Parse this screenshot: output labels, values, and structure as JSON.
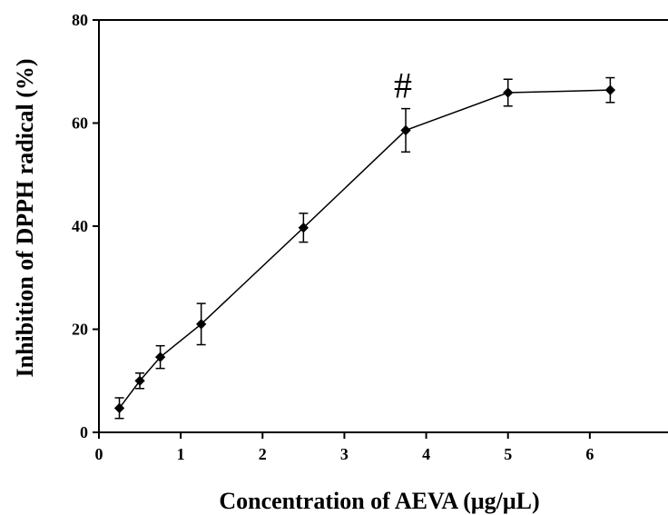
{
  "chart_data": {
    "type": "line",
    "title": "",
    "xlabel": "Concentration of AEVA (μg/μL)",
    "ylabel": "Inhibition of DPPH radical (%)",
    "xlim": [
      0,
      7
    ],
    "ylim": [
      0,
      80
    ],
    "xticks": [
      "0",
      "1",
      "2",
      "3",
      "4",
      "5",
      "6"
    ],
    "yticks": [
      "0",
      "20",
      "40",
      "60",
      "80"
    ],
    "grid": false,
    "series": [
      {
        "color": "#000000",
        "x": [
          0.25,
          0.5,
          0.75,
          1.25,
          2.5,
          3.75,
          5,
          6.25
        ],
        "y": [
          4.7,
          10.0,
          14.6,
          21.0,
          39.7,
          58.6,
          65.9,
          66.4
        ],
        "err": [
          2.0,
          1.5,
          2.2,
          4.0,
          2.8,
          4.2,
          2.6,
          2.4
        ]
      }
    ],
    "annotations": [
      {
        "text": "#",
        "x": 3.75
      }
    ]
  }
}
